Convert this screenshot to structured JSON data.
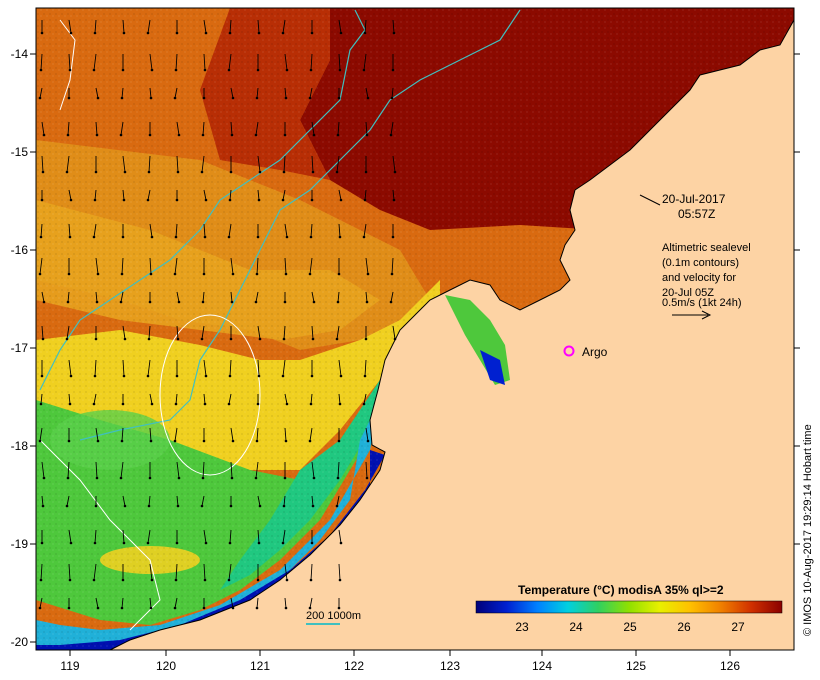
{
  "map": {
    "x_ticks": [
      "119",
      "120",
      "121",
      "122",
      "123",
      "124",
      "125",
      "126"
    ],
    "y_ticks": [
      "-14",
      "-15",
      "-16",
      "-17",
      "-18",
      "-19",
      "-20"
    ],
    "date_line1": "20-Jul-2017",
    "date_line2": "05:57Z",
    "legend_lines": [
      "Altimetric sealevel",
      "(0.1m contours)",
      "and velocity for",
      "20-Jul 05Z",
      "0.5m/s (1kt 24h)"
    ],
    "argo_label": "Argo",
    "depth_label": "200  1000m",
    "credit": "© IMOS 10-Aug-2017 19:29:14 Hobart time",
    "colorbar": {
      "title": "Temperature (°C) modisA 35% ql>=2",
      "labels": [
        "23",
        "24",
        "25",
        "26",
        "27"
      ],
      "colors": [
        "#00007a",
        "#0018c8",
        "#0070ff",
        "#00c8ff",
        "#20e0a0",
        "#40d040",
        "#a0e000",
        "#e8f000",
        "#ffd000",
        "#ffa000",
        "#f07000",
        "#d84000",
        "#b01800",
        "#8a0000"
      ]
    },
    "ocean_colors": {
      "land": "#fdd3a4",
      "warm": "#8c0a00",
      "orange": "#d96a10",
      "amber": "#e59a1a",
      "yellow": "#f0d020",
      "green": "#4ec83c",
      "cyan": "#20b0d8",
      "blue": "#0010b0"
    }
  }
}
